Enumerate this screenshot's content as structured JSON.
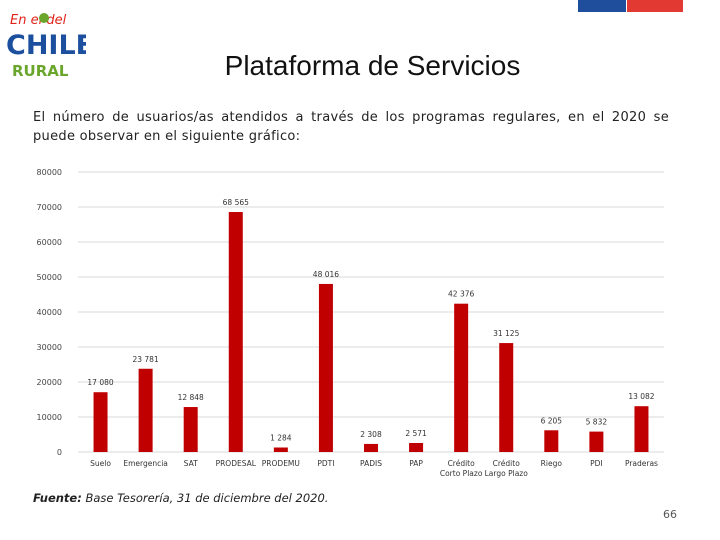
{
  "logo": {
    "line1": "En el del",
    "line2": "CHILE",
    "line3": "RURAL"
  },
  "header": {
    "title": "Plataforma de Servicios",
    "intro": "El número de usuarios/as atendidos a través de los programas regulares, en el 2020 se puede observar en el siguiente gráfico:"
  },
  "colors": {
    "bar": "#c00000",
    "flag_blue": "#1f4e9c",
    "flag_red": "#e23a32",
    "logo_blue": "#1c4f9d",
    "logo_green": "#6aa52c",
    "logo_red": "#e2231a"
  },
  "chart_data": {
    "type": "bar",
    "title": "",
    "xlabel": "",
    "ylabel": "",
    "ylim": [
      0,
      80000
    ],
    "yticks": [
      "0",
      "10000",
      "20000",
      "30000",
      "40000",
      "50000",
      "60000",
      "70000",
      "80000"
    ],
    "grid": true,
    "categories": [
      [
        "Suelo"
      ],
      [
        "Emergencia"
      ],
      [
        "SAT"
      ],
      [
        "PRODESAL"
      ],
      [
        "PRODEMU"
      ],
      [
        "PDTI"
      ],
      [
        "PADIS"
      ],
      [
        "PAP"
      ],
      [
        "Crédito",
        "Corto Plazo"
      ],
      [
        "Crédito",
        "Largo Plazo"
      ],
      [
        "Riego"
      ],
      [
        "PDI"
      ],
      [
        "Praderas"
      ]
    ],
    "values": [
      17080,
      23781,
      12848,
      68565,
      1284,
      48016,
      2308,
      2571,
      42376,
      31125,
      6205,
      5832,
      13082
    ],
    "labels": [
      "17 080",
      "23 781",
      "12 848",
      "68 565",
      "1 284",
      "48 016",
      "2 308",
      "2 571",
      "42 376",
      "31 125",
      "6 205",
      "5 832",
      "13 082"
    ]
  },
  "footer": {
    "source_label": "Fuente:",
    "source_text": "Base Tesorería, 31 de diciembre del 2020.",
    "page_number": "66"
  }
}
